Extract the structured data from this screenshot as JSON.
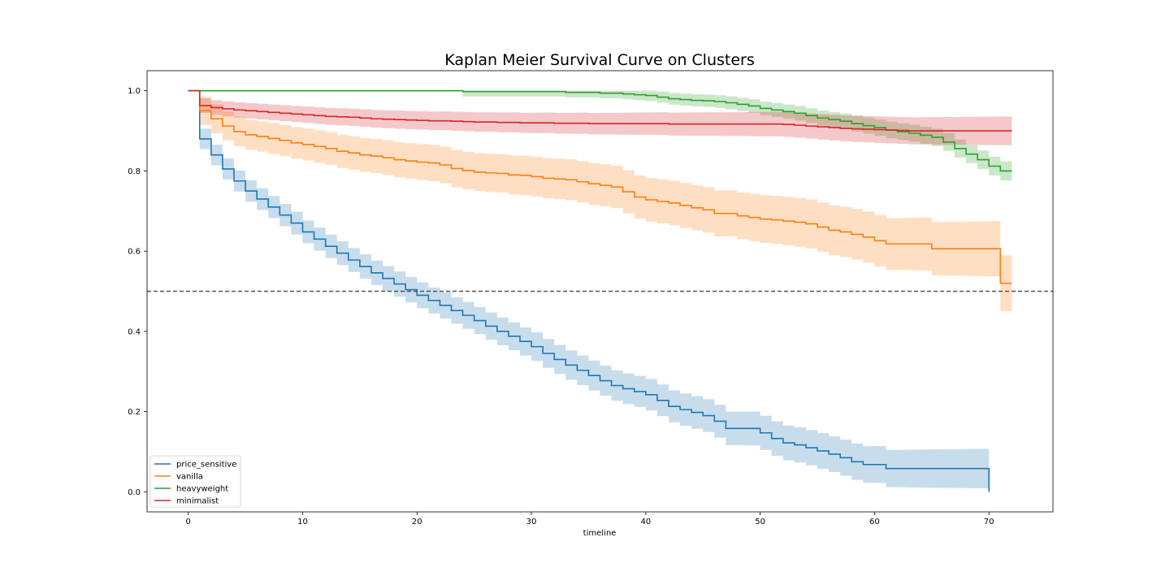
{
  "chart_data": {
    "type": "line",
    "subtype": "step-with-confidence-bands",
    "title": "Kaplan Meier Survival Curve on Clusters",
    "xlabel": "timeline",
    "ylabel": "",
    "xlim": [
      -3.6,
      75.6
    ],
    "ylim": [
      -0.05,
      1.05
    ],
    "xticks": [
      0,
      10,
      20,
      30,
      40,
      50,
      60,
      70
    ],
    "yticks": [
      0.0,
      0.2,
      0.4,
      0.6,
      0.8,
      1.0
    ],
    "ytick_labels": [
      "0.0",
      "0.2",
      "0.4",
      "0.6",
      "0.8",
      "1.0"
    ],
    "reference_line": {
      "y": 0.5,
      "style": "dashed",
      "color": "#555555"
    },
    "grid": false,
    "legend": {
      "position": "bottom-left"
    },
    "series": [
      {
        "name": "price_sensitive",
        "color": "#1f77b4",
        "x": [
          0,
          1,
          2,
          3,
          4,
          5,
          6,
          7,
          8,
          9,
          10,
          11,
          12,
          13,
          14,
          15,
          16,
          17,
          18,
          19,
          20,
          21,
          22,
          23,
          24,
          25,
          26,
          27,
          28,
          29,
          30,
          31,
          32,
          33,
          34,
          35,
          36,
          37,
          38,
          39,
          40,
          41,
          42,
          43,
          44,
          45,
          46,
          47,
          48,
          49,
          50,
          51,
          52,
          53,
          54,
          55,
          56,
          57,
          58,
          59,
          60,
          61,
          62,
          63,
          64,
          65,
          66,
          67,
          68,
          69,
          70
        ],
        "survival": [
          1.0,
          0.88,
          0.84,
          0.805,
          0.775,
          0.75,
          0.73,
          0.71,
          0.69,
          0.67,
          0.648,
          0.63,
          0.612,
          0.595,
          0.578,
          0.562,
          0.546,
          0.532,
          0.518,
          0.504,
          0.49,
          0.477,
          0.465,
          0.452,
          0.44,
          0.427,
          0.413,
          0.4,
          0.388,
          0.375,
          0.362,
          0.345,
          0.33,
          0.316,
          0.303,
          0.29,
          0.277,
          0.265,
          0.257,
          0.25,
          0.242,
          0.228,
          0.213,
          0.205,
          0.198,
          0.19,
          0.176,
          0.158,
          0.158,
          0.158,
          0.147,
          0.133,
          0.122,
          0.117,
          0.11,
          0.102,
          0.094,
          0.085,
          0.075,
          0.068,
          0.068,
          0.058,
          0.058,
          0.058,
          0.058,
          0.058,
          0.058,
          0.058,
          0.058,
          0.058,
          0.0
        ],
        "band": 0.025
      },
      {
        "name": "vanilla",
        "color": "#ff7f0e",
        "x": [
          0,
          1,
          2,
          3,
          4,
          5,
          6,
          7,
          8,
          9,
          10,
          11,
          12,
          13,
          14,
          15,
          16,
          17,
          18,
          19,
          20,
          21,
          22,
          23,
          24,
          25,
          26,
          27,
          28,
          29,
          30,
          31,
          32,
          33,
          34,
          35,
          36,
          37,
          38,
          39,
          40,
          41,
          42,
          43,
          44,
          45,
          46,
          47,
          48,
          49,
          50,
          51,
          52,
          53,
          54,
          55,
          56,
          57,
          58,
          59,
          60,
          61,
          62,
          63,
          64,
          65,
          66,
          67,
          68,
          69,
          70,
          71
        ],
        "survival": [
          1.0,
          0.95,
          0.93,
          0.912,
          0.898,
          0.89,
          0.886,
          0.881,
          0.876,
          0.87,
          0.866,
          0.861,
          0.856,
          0.849,
          0.845,
          0.84,
          0.837,
          0.833,
          0.828,
          0.825,
          0.822,
          0.82,
          0.815,
          0.806,
          0.801,
          0.797,
          0.795,
          0.794,
          0.79,
          0.789,
          0.786,
          0.782,
          0.78,
          0.778,
          0.773,
          0.768,
          0.764,
          0.76,
          0.748,
          0.735,
          0.728,
          0.724,
          0.72,
          0.714,
          0.708,
          0.703,
          0.694,
          0.694,
          0.688,
          0.684,
          0.68,
          0.678,
          0.675,
          0.672,
          0.668,
          0.66,
          0.652,
          0.648,
          0.642,
          0.635,
          0.626,
          0.618,
          0.618,
          0.618,
          0.618,
          0.606,
          0.606,
          0.606,
          0.606,
          0.606,
          0.606,
          0.52
        ],
        "band": 0.035
      },
      {
        "name": "heavyweight",
        "color": "#2ca02c",
        "x": [
          0,
          24,
          33,
          36,
          38,
          39,
          40,
          41,
          42,
          43,
          44,
          45,
          46,
          47,
          48,
          49,
          50,
          51,
          52,
          53,
          54,
          55,
          56,
          57,
          58,
          59,
          60,
          61,
          62,
          63,
          64,
          65,
          66,
          67,
          68,
          69,
          70,
          71
        ],
        "survival": [
          1.0,
          0.998,
          0.996,
          0.994,
          0.992,
          0.99,
          0.988,
          0.984,
          0.98,
          0.978,
          0.976,
          0.975,
          0.973,
          0.97,
          0.966,
          0.962,
          0.956,
          0.952,
          0.948,
          0.944,
          0.938,
          0.932,
          0.928,
          0.924,
          0.918,
          0.913,
          0.908,
          0.902,
          0.898,
          0.894,
          0.889,
          0.884,
          0.872,
          0.856,
          0.842,
          0.828,
          0.812,
          0.8
        ],
        "band": 0.012
      },
      {
        "name": "minimalist",
        "color": "#d62728",
        "x": [
          0,
          1,
          2,
          3,
          4,
          5,
          6,
          7,
          8,
          9,
          10,
          11,
          12,
          13,
          14,
          15,
          16,
          17,
          18,
          19,
          20,
          21,
          22,
          23,
          24,
          25,
          26,
          27,
          28,
          29,
          30,
          31,
          32,
          33,
          34,
          35,
          36,
          37,
          38,
          39,
          40,
          41,
          42,
          43,
          44,
          45,
          46,
          47,
          48,
          49,
          50,
          51,
          52,
          53,
          54,
          55,
          56,
          57,
          58,
          59,
          60,
          61,
          62,
          63,
          64,
          65,
          66,
          67,
          68,
          69,
          70,
          71
        ],
        "survival": [
          1.0,
          0.963,
          0.958,
          0.955,
          0.952,
          0.95,
          0.948,
          0.946,
          0.944,
          0.942,
          0.94,
          0.938,
          0.936,
          0.935,
          0.934,
          0.932,
          0.93,
          0.929,
          0.928,
          0.927,
          0.926,
          0.925,
          0.925,
          0.924,
          0.923,
          0.922,
          0.922,
          0.921,
          0.921,
          0.92,
          0.92,
          0.92,
          0.919,
          0.919,
          0.919,
          0.918,
          0.918,
          0.918,
          0.918,
          0.918,
          0.918,
          0.918,
          0.917,
          0.917,
          0.917,
          0.917,
          0.917,
          0.917,
          0.917,
          0.917,
          0.917,
          0.917,
          0.916,
          0.914,
          0.912,
          0.91,
          0.908,
          0.906,
          0.905,
          0.904,
          0.903,
          0.902,
          0.901,
          0.9,
          0.9,
          0.9,
          0.9,
          0.9,
          0.9,
          0.9,
          0.9,
          0.9
        ],
        "band": 0.018
      }
    ]
  }
}
